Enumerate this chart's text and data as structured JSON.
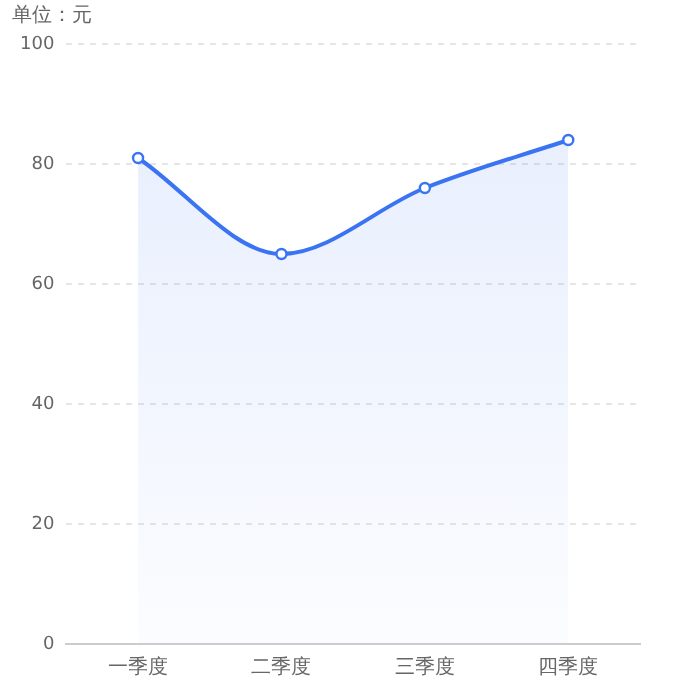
{
  "chart_data": {
    "type": "area",
    "ylabel": "单位：元",
    "categories": [
      "一季度",
      "二季度",
      "三季度",
      "四季度"
    ],
    "series": [
      {
        "color": "#3a74f2",
        "values": [
          81,
          65,
          76,
          84
        ]
      }
    ],
    "ylim": [
      0,
      100
    ],
    "yticks": [
      0,
      20,
      40,
      60,
      80,
      100
    ],
    "grid": "y",
    "legend": false,
    "marker": "circle",
    "line_style": "solid"
  }
}
